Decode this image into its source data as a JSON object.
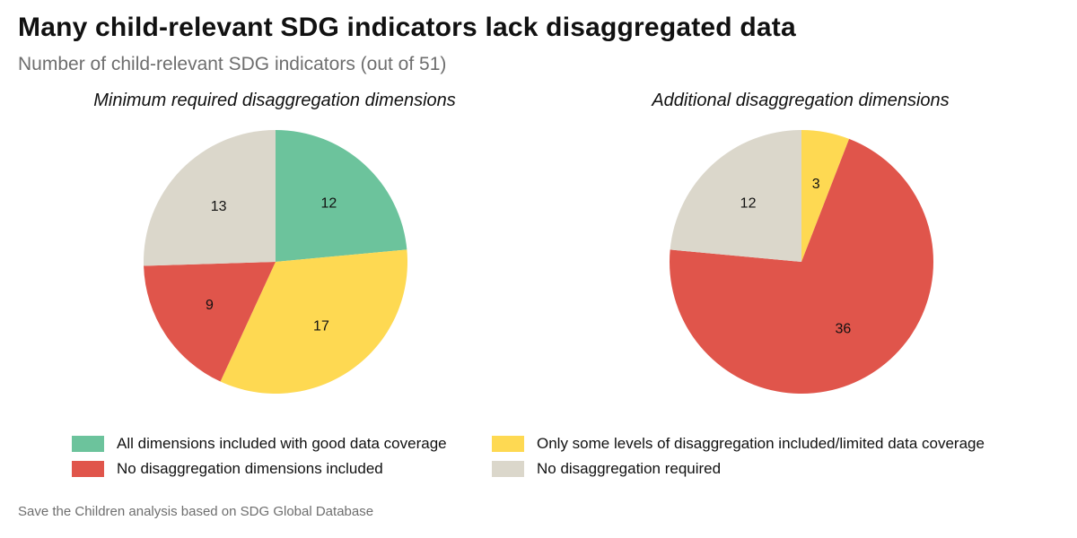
{
  "title": "Many child-relevant SDG indicators lack disaggregated data",
  "subtitle": "Number of child-relevant SDG indicators (out of 51)",
  "source": "Save the Children analysis based on SDG Global Database",
  "colors": {
    "good": "#6cc39c",
    "limited": "#fed952",
    "none": "#e0554b",
    "not_required": "#dbd7cb"
  },
  "legend": [
    {
      "key": "good",
      "label": "All dimensions included with good data coverage"
    },
    {
      "key": "limited",
      "label": "Only some levels of disaggregation included/limited data coverage"
    },
    {
      "key": "none",
      "label": "No disaggregation dimensions included"
    },
    {
      "key": "not_required",
      "label": "No disaggregation required"
    }
  ],
  "chart_data": [
    {
      "type": "pie",
      "title": "Minimum required disaggregation dimensions",
      "legend_position": "bottom",
      "slices": [
        {
          "key": "good",
          "value": 12
        },
        {
          "key": "limited",
          "value": 17
        },
        {
          "key": "none",
          "value": 9
        },
        {
          "key": "not_required",
          "value": 13
        }
      ]
    },
    {
      "type": "pie",
      "title": "Additional disaggregation dimensions",
      "legend_position": "bottom",
      "slices": [
        {
          "key": "limited",
          "value": 3
        },
        {
          "key": "none",
          "value": 36
        },
        {
          "key": "not_required",
          "value": 12
        }
      ]
    }
  ]
}
